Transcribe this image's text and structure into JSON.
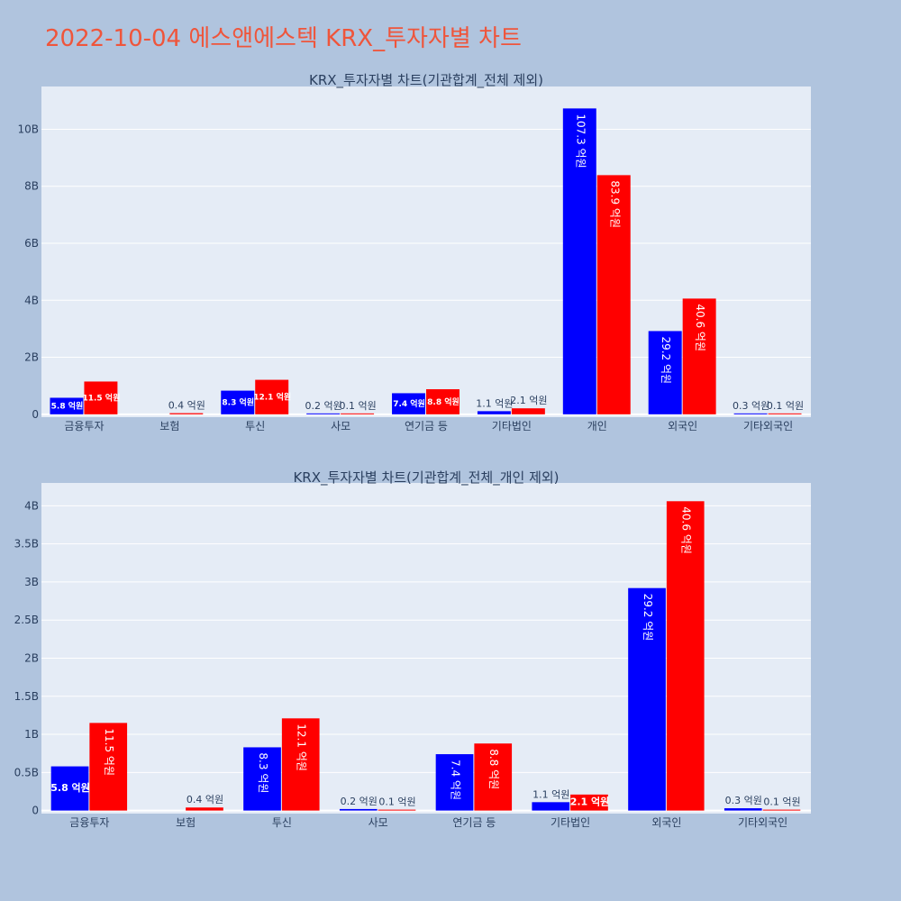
{
  "page_title": "2022-10-04 에스앤에스텍 KRX_투자자별 차트",
  "colors": {
    "page_bg": "#b0c4de",
    "plot_bg": "#e5ecf6",
    "grid": "#ffffff",
    "title": "#ef553b",
    "buy": "#0000ff",
    "sell": "#ff0000",
    "text": "#2a3f5f"
  },
  "chart_data": [
    {
      "type": "bar",
      "title": "KRX_투자자별 차트(기관합계_전체 제외)",
      "categories": [
        "금융투자",
        "보험",
        "투신",
        "사모",
        "연기금 등",
        "기타법인",
        "개인",
        "외국인",
        "기타외국인"
      ],
      "series": [
        {
          "color": "#0000ff",
          "values": [
            0.58,
            0.0,
            0.83,
            0.02,
            0.74,
            0.11,
            10.73,
            2.92,
            0.03
          ],
          "labels": [
            "5.8 억원",
            "",
            "8.3 억원",
            "0.2 억원",
            "7.4 억원",
            "1.1 억원",
            "107.3 억원",
            "29.2 억원",
            "0.3 억원"
          ]
        },
        {
          "color": "#ff0000",
          "values": [
            1.15,
            0.04,
            1.21,
            0.01,
            0.88,
            0.21,
            8.39,
            4.06,
            0.01
          ],
          "labels": [
            "11.5 억원",
            "0.4 억원",
            "12.1 억원",
            "0.1 억원",
            "8.8 억원",
            "2.1 억원",
            "83.9 억원",
            "40.6 억원",
            "0.1 억원"
          ]
        }
      ],
      "ylim": [
        -0.1,
        11.5
      ],
      "yticks": [
        0,
        2,
        4,
        6,
        8,
        10
      ],
      "ytick_labels": [
        "0",
        "2B",
        "4B",
        "6B",
        "8B",
        "10B"
      ],
      "grid": true
    },
    {
      "type": "bar",
      "title": "KRX_투자자별 차트(기관합계_전체_개인 제외)",
      "categories": [
        "금융투자",
        "보험",
        "투신",
        "사모",
        "연기금 등",
        "기타법인",
        "외국인",
        "기타외국인"
      ],
      "series": [
        {
          "color": "#0000ff",
          "values": [
            0.58,
            0.0,
            0.83,
            0.02,
            0.74,
            0.11,
            2.92,
            0.03
          ],
          "labels": [
            "5.8 억원",
            "",
            "8.3 억원",
            "0.2 억원",
            "7.4 억원",
            "1.1 억원",
            "29.2 억원",
            "0.3 억원"
          ]
        },
        {
          "color": "#ff0000",
          "values": [
            1.15,
            0.04,
            1.21,
            0.01,
            0.88,
            0.21,
            4.06,
            0.01
          ],
          "labels": [
            "11.5 억원",
            "0.4 억원",
            "12.1 억원",
            "0.1 억원",
            "8.8 억원",
            "2.1 억원",
            "40.6 억원",
            "0.1 억원"
          ]
        }
      ],
      "ylim": [
        -0.04,
        4.3
      ],
      "yticks": [
        0,
        0.5,
        1,
        1.5,
        2,
        2.5,
        3,
        3.5,
        4
      ],
      "ytick_labels": [
        "0",
        "0.5B",
        "1B",
        "1.5B",
        "2B",
        "2.5B",
        "3B",
        "3.5B",
        "4B"
      ],
      "grid": true
    }
  ]
}
